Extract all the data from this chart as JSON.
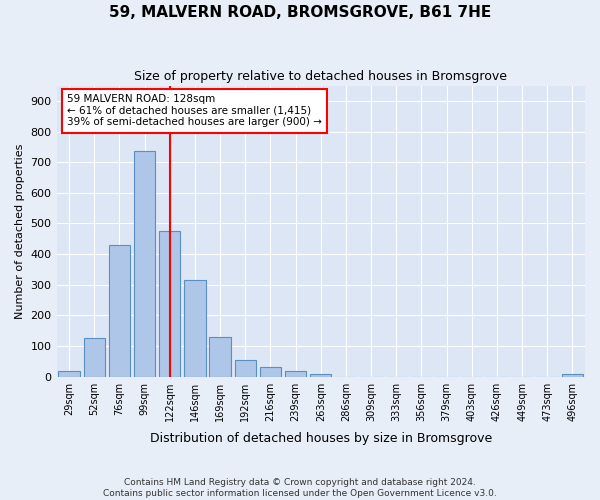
{
  "title": "59, MALVERN ROAD, BROMSGROVE, B61 7HE",
  "subtitle": "Size of property relative to detached houses in Bromsgrove",
  "xlabel": "Distribution of detached houses by size in Bromsgrove",
  "ylabel": "Number of detached properties",
  "footer_line1": "Contains HM Land Registry data © Crown copyright and database right 2024.",
  "footer_line2": "Contains public sector information licensed under the Open Government Licence v3.0.",
  "bar_labels": [
    "29sqm",
    "52sqm",
    "76sqm",
    "99sqm",
    "122sqm",
    "146sqm",
    "169sqm",
    "192sqm",
    "216sqm",
    "239sqm",
    "263sqm",
    "286sqm",
    "309sqm",
    "333sqm",
    "356sqm",
    "379sqm",
    "403sqm",
    "426sqm",
    "449sqm",
    "473sqm",
    "496sqm"
  ],
  "bar_values": [
    20,
    125,
    430,
    735,
    475,
    315,
    130,
    55,
    30,
    20,
    10,
    0,
    0,
    0,
    0,
    0,
    0,
    0,
    0,
    0,
    10
  ],
  "bar_color": "#aec6e8",
  "bar_edge_color": "#5a8fc2",
  "vline_pos": 4.0,
  "vline_color": "red",
  "annotation_title": "59 MALVERN ROAD: 128sqm",
  "annotation_line1": "← 61% of detached houses are smaller (1,415)",
  "annotation_line2": "39% of semi-detached houses are larger (900) →",
  "annotation_box_color": "white",
  "annotation_box_edgecolor": "red",
  "ylim": [
    0,
    950
  ],
  "yticks": [
    0,
    100,
    200,
    300,
    400,
    500,
    600,
    700,
    800,
    900
  ],
  "bg_color": "#e8eef7",
  "plot_bg_color": "#dce6f5"
}
